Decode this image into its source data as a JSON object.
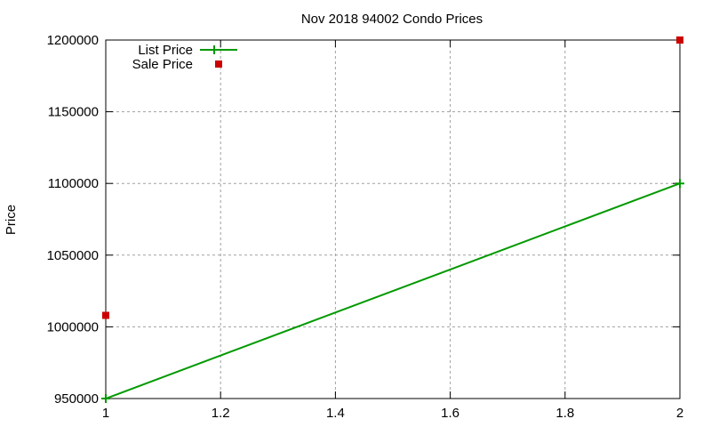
{
  "chart_data": {
    "type": "line",
    "title": "Nov 2018 94002 Condo Prices",
    "xlabel": "",
    "ylabel": "Price",
    "xlim": [
      1,
      2
    ],
    "ylim": [
      950000,
      1200000
    ],
    "x_ticks": [
      "1",
      "1.2",
      "1.4",
      "1.6",
      "1.8",
      "2"
    ],
    "y_ticks": [
      "950000",
      "1000000",
      "1050000",
      "1100000",
      "1150000",
      "1200000"
    ],
    "grid": true,
    "legend_position": "top-left",
    "series": [
      {
        "name": "List Price",
        "style": "linespoints",
        "color": "#009900",
        "marker": "plus",
        "x": [
          1,
          2
        ],
        "values": [
          950000,
          1100000
        ]
      },
      {
        "name": "Sale Price",
        "style": "points",
        "color": "#cc0000",
        "marker": "square",
        "x": [
          1,
          2
        ],
        "values": [
          1008000,
          1200000
        ]
      }
    ]
  }
}
